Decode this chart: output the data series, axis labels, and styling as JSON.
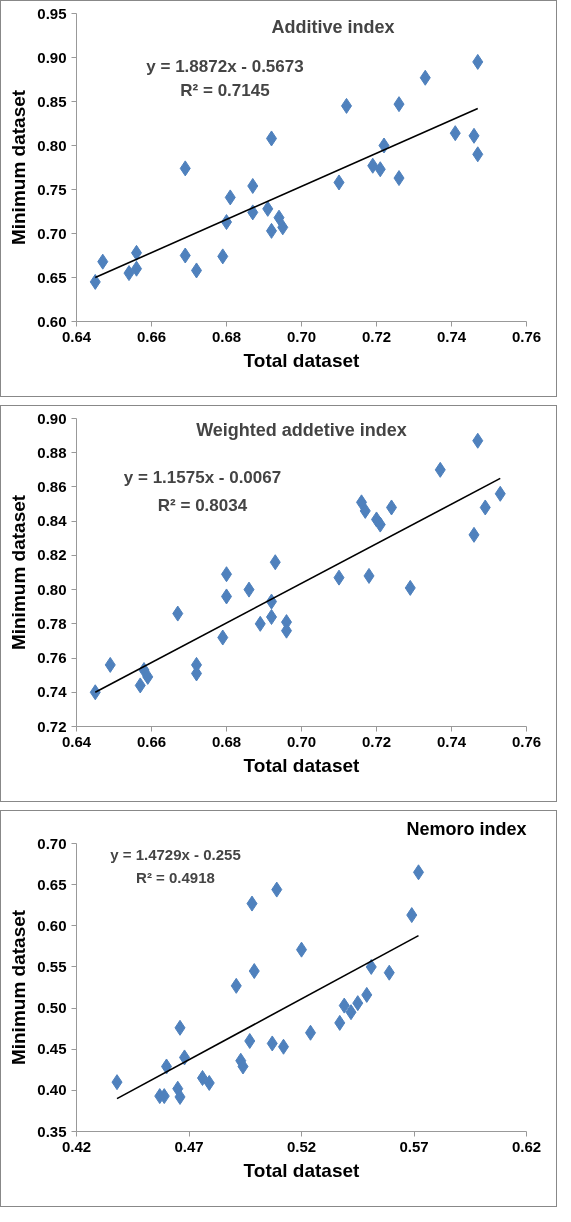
{
  "chart_data": [
    {
      "type": "scatter",
      "title": "Additive index",
      "xlabel": "Total dataset",
      "ylabel": "Minimum dataset",
      "marker": "diamond",
      "grid": false,
      "xlim": [
        0.64,
        0.76
      ],
      "xticks": [
        0.64,
        0.66,
        0.68,
        {
          "value": 0.7,
          "label": "0.70"
        },
        0.72,
        0.74,
        0.76
      ],
      "ylim": [
        0.6,
        0.95
      ],
      "yticks": [
        {
          "value": 0.6,
          "label": "0.60"
        },
        0.65,
        {
          "value": 0.7,
          "label": "0.70"
        },
        0.75,
        {
          "value": 0.8,
          "label": "0.80"
        },
        0.85,
        {
          "value": 0.9,
          "label": "0.90"
        },
        0.95
      ],
      "annotations": [
        "y = 1.8872x - 0.5673",
        "R² = 0.7145"
      ],
      "series": [
        {
          "color": "#4f81bd",
          "x": [
            0.645,
            0.647,
            0.654,
            0.656,
            0.656,
            0.669,
            0.669,
            0.672,
            0.679,
            0.68,
            0.681,
            0.687,
            0.687,
            0.691,
            0.692,
            0.692,
            0.694,
            0.695,
            0.71,
            0.712,
            0.719,
            0.721,
            0.722,
            0.726,
            0.726,
            0.733,
            0.741,
            0.746,
            0.747,
            0.747
          ],
          "values": [
            0.645,
            0.668,
            0.655,
            0.678,
            0.66,
            0.774,
            0.675,
            0.658,
            0.674,
            0.713,
            0.741,
            0.754,
            0.724,
            0.728,
            0.808,
            0.703,
            0.718,
            0.707,
            0.758,
            0.845,
            0.777,
            0.773,
            0.8,
            0.847,
            0.763,
            0.877,
            0.814,
            0.811,
            0.895,
            0.79
          ]
        },
        {
          "type": "line",
          "marker": "none",
          "color": "#000000",
          "x": [
            0.645,
            0.747
          ],
          "values": [
            0.65,
            0.842
          ]
        }
      ]
    },
    {
      "type": "scatter",
      "title": "Weighted addetive index",
      "xlabel": "Total dataset",
      "ylabel": "Minimum dataset",
      "marker": "diamond",
      "grid": false,
      "xlim": [
        0.64,
        0.76
      ],
      "xticks": [
        0.64,
        0.66,
        0.68,
        {
          "value": 0.7,
          "label": "0.70"
        },
        0.72,
        0.74,
        0.76
      ],
      "ylim": [
        0.72,
        0.9
      ],
      "yticks": [
        0.72,
        0.74,
        0.76,
        0.78,
        {
          "value": 0.8,
          "label": "0.80"
        },
        0.82,
        0.84,
        0.86,
        0.88,
        {
          "value": 0.9,
          "label": "0.90"
        }
      ],
      "annotations": [
        "y = 1.1575x - 0.0067",
        "R² = 0.8034"
      ],
      "series": [
        {
          "color": "#4f81bd",
          "x": [
            0.645,
            0.649,
            0.657,
            0.658,
            0.659,
            0.667,
            0.672,
            0.672,
            0.679,
            0.68,
            0.68,
            0.686,
            0.689,
            0.692,
            0.692,
            0.693,
            0.696,
            0.696,
            0.71,
            0.716,
            0.717,
            0.718,
            0.72,
            0.721,
            0.724,
            0.729,
            0.737,
            0.746,
            0.747,
            0.749,
            0.753
          ],
          "values": [
            0.74,
            0.756,
            0.744,
            0.753,
            0.749,
            0.786,
            0.756,
            0.751,
            0.772,
            0.809,
            0.796,
            0.8,
            0.78,
            0.784,
            0.793,
            0.816,
            0.781,
            0.776,
            0.807,
            0.851,
            0.846,
            0.808,
            0.841,
            0.838,
            0.848,
            0.801,
            0.87,
            0.832,
            0.887,
            0.848,
            0.856
          ]
        },
        {
          "type": "line",
          "marker": "none",
          "color": "#000000",
          "x": [
            0.645,
            0.753
          ],
          "values": [
            0.74,
            0.865
          ]
        }
      ]
    },
    {
      "type": "scatter",
      "title": "Nemoro index",
      "xlabel": "Total dataset",
      "ylabel": "Minimum dataset",
      "marker": "diamond",
      "grid": false,
      "xlim": [
        0.42,
        0.62
      ],
      "xticks": [
        0.42,
        0.47,
        0.52,
        0.57,
        0.62
      ],
      "ylim": [
        0.35,
        0.7
      ],
      "yticks": [
        0.35,
        {
          "value": 0.4,
          "label": "0.40"
        },
        0.45,
        {
          "value": 0.5,
          "label": "0.50"
        },
        0.55,
        {
          "value": 0.6,
          "label": "0.60"
        },
        0.65,
        {
          "value": 0.7,
          "label": "0.70"
        }
      ],
      "annotations": [
        "y = 1.4729x - 0.255",
        "R² = 0.4918"
      ],
      "series": [
        {
          "color": "#4f81bd",
          "x": [
            0.438,
            0.457,
            0.459,
            0.46,
            0.465,
            0.466,
            0.466,
            0.468,
            0.476,
            0.479,
            0.491,
            0.493,
            0.494,
            0.497,
            0.498,
            0.499,
            0.507,
            0.509,
            0.512,
            0.52,
            0.524,
            0.537,
            0.539,
            0.542,
            0.545,
            0.549,
            0.551,
            0.559,
            0.569,
            0.572
          ],
          "values": [
            0.41,
            0.393,
            0.393,
            0.429,
            0.402,
            0.392,
            0.476,
            0.44,
            0.415,
            0.409,
            0.527,
            0.436,
            0.429,
            0.46,
            0.627,
            0.545,
            0.457,
            0.644,
            0.453,
            0.571,
            0.47,
            0.482,
            0.503,
            0.495,
            0.506,
            0.516,
            0.55,
            0.543,
            0.613,
            0.665
          ]
        },
        {
          "type": "line",
          "marker": "none",
          "color": "#000000",
          "x": [
            0.438,
            0.572
          ],
          "values": [
            0.39,
            0.588
          ]
        }
      ]
    }
  ]
}
